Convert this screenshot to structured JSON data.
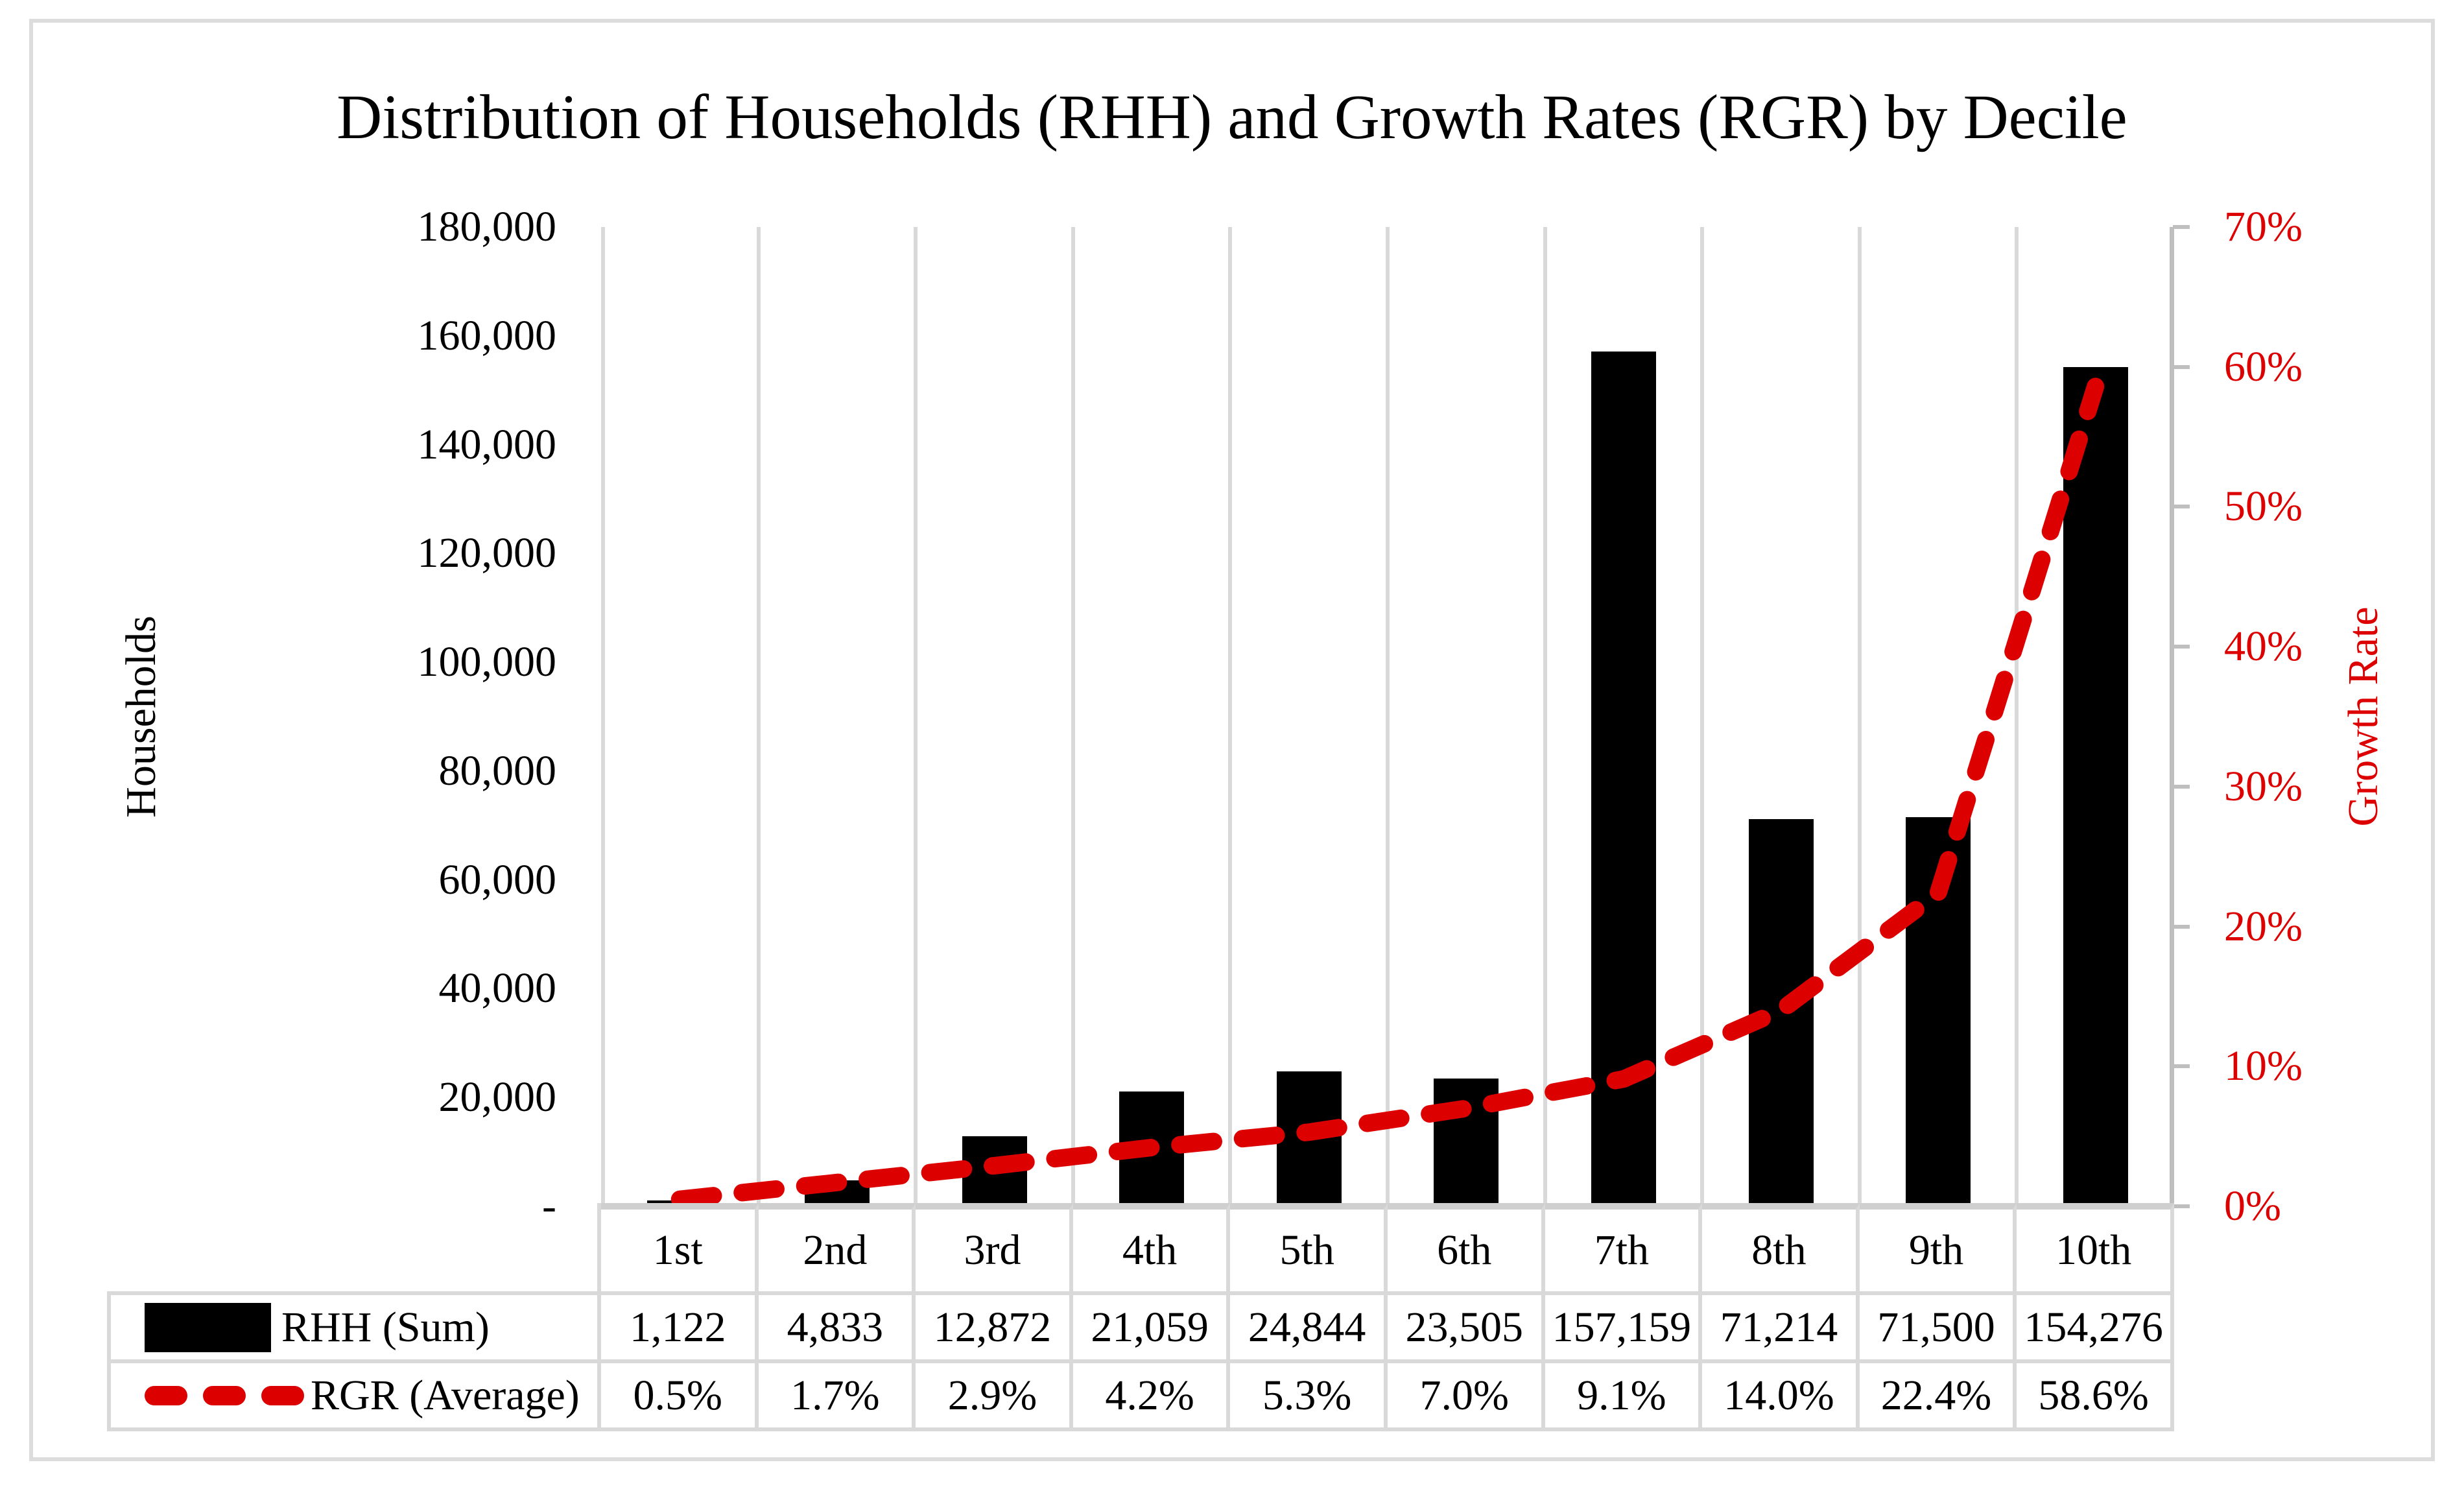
{
  "title": "Distribution of Households (RHH) and Growth Rates (RGR) by Decile",
  "chart_data": {
    "type": "bar+line-combo",
    "categories": [
      "1st",
      "2nd",
      "3rd",
      "4th",
      "5th",
      "6th",
      "7th",
      "8th",
      "9th",
      "10th"
    ],
    "series": [
      {
        "name": "RHH (Sum)",
        "type": "bar",
        "axis": "left",
        "color": "#000000",
        "values": [
          1122,
          4833,
          12872,
          21059,
          24844,
          23505,
          157159,
          71214,
          71500,
          154276
        ],
        "labels": [
          "1,122",
          "4,833",
          "12,872",
          "21,059",
          "24,844",
          "23,505",
          "157,159",
          "71,214",
          "71,500",
          "154,276"
        ]
      },
      {
        "name": "RGR (Average)",
        "type": "dashed-line",
        "axis": "right",
        "color": "#DD0000",
        "values": [
          0.5,
          1.7,
          2.9,
          4.2,
          5.3,
          7.0,
          9.1,
          14.0,
          22.4,
          58.6
        ],
        "labels": [
          "0.5%",
          "1.7%",
          "2.9%",
          "4.2%",
          "5.3%",
          "7.0%",
          "9.1%",
          "14.0%",
          "22.4%",
          "58.6%"
        ]
      }
    ],
    "left_axis": {
      "title": "Households",
      "min": 0,
      "max": 180000,
      "step": 20000,
      "tick_labels": [
        "180,000",
        "160,000",
        "140,000",
        "120,000",
        "100,000",
        "80,000",
        "60,000",
        "40,000",
        "20,000",
        "-"
      ]
    },
    "right_axis": {
      "title": "Growth Rate",
      "min": 0,
      "max": 70,
      "step": 10,
      "color": "#DD0000",
      "tick_labels": [
        "70%",
        "60%",
        "50%",
        "40%",
        "30%",
        "20%",
        "10%",
        "0%"
      ]
    },
    "grid": "vertical-only",
    "legend_position": "bottom-table"
  },
  "colors": {
    "bar": "#000000",
    "line": "#DD0000",
    "gridline": "#D9D9D9",
    "axis_line": "#BFBFBF",
    "baseline": "#CFCFCF",
    "frame_border": "#DCDCDC",
    "background": "#FFFFFF"
  }
}
